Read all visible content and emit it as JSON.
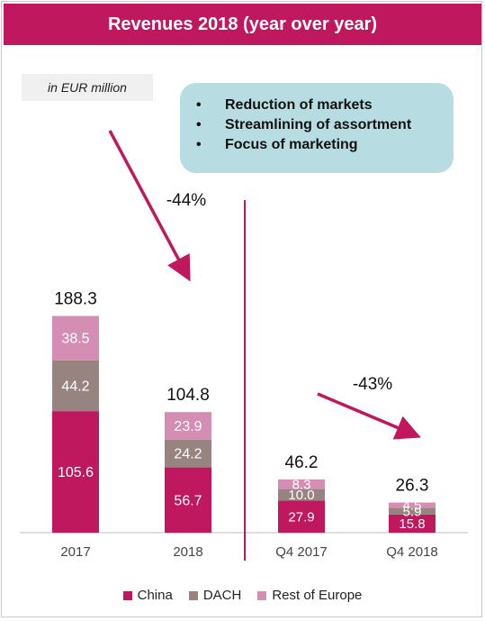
{
  "title": "Revenues 2018 (year over year)",
  "unit_note": "in EUR million",
  "callout": {
    "items": [
      "Reduction of markets",
      "Streamlining of assortment",
      "Focus of marketing"
    ]
  },
  "annotations": {
    "change_annual": "-44%",
    "change_quarterly": "-43%"
  },
  "colors": {
    "China": "#c0185e",
    "DACH": "#978480",
    "Rest of Europe": "#d48eb3",
    "title_bar": "#c0185e",
    "callout_bg": "#b7dde2"
  },
  "chart_data": {
    "type": "bar",
    "stacked": true,
    "title": "Revenues 2018 (year over year)",
    "ylabel": "in EUR million",
    "categories": [
      "2017",
      "2018",
      "Q4 2017",
      "Q4 2018"
    ],
    "series": [
      {
        "name": "China",
        "values": [
          105.6,
          56.7,
          27.9,
          15.8
        ]
      },
      {
        "name": "DACH",
        "values": [
          44.2,
          24.2,
          10.0,
          5.9
        ]
      },
      {
        "name": "Rest of Europe",
        "values": [
          38.5,
          23.9,
          8.3,
          4.5
        ]
      }
    ],
    "totals": [
      188.3,
      104.8,
      46.2,
      26.3
    ],
    "legend_position": "bottom"
  }
}
